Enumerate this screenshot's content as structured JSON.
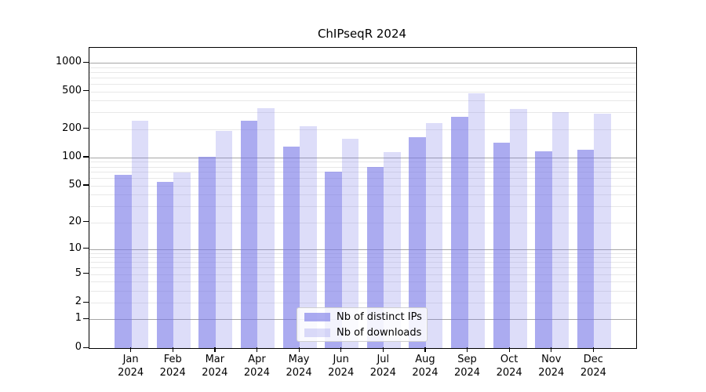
{
  "chart_data": {
    "type": "bar",
    "title": "ChIPseqR 2024",
    "year_label": "2024",
    "categories": [
      "Jan",
      "Feb",
      "Mar",
      "Apr",
      "May",
      "Jun",
      "Jul",
      "Aug",
      "Sep",
      "Oct",
      "Nov",
      "Dec"
    ],
    "series": [
      {
        "name": "Nb of distinct IPs",
        "key": "distinct-ips",
        "color_hex": "#a8a8f2",
        "fill_rgba": "rgba(120,120,230,0.62)",
        "values": [
          65,
          55,
          102,
          245,
          130,
          71,
          80,
          163,
          268,
          143,
          117,
          122
        ]
      },
      {
        "name": "Nb of downloads",
        "key": "downloads",
        "color_hex": "#dedef9",
        "fill_rgba": "rgba(120,120,230,0.25)",
        "values": [
          245,
          69,
          190,
          335,
          215,
          158,
          115,
          230,
          480,
          328,
          300,
          290
        ]
      }
    ],
    "yscale": "log10(1+v)",
    "y_ticks": [
      0,
      1,
      2,
      5,
      10,
      20,
      50,
      100,
      200,
      500,
      1000
    ],
    "ylim": [
      0,
      1400
    ],
    "grid": {
      "orientation": "horizontal",
      "major_values": [
        1,
        10,
        100,
        1000
      ],
      "major_color": "#a6a6a6",
      "minor_color": "#e8e8e8"
    },
    "legend_position": "lower center",
    "xlabel": "",
    "ylabel": ""
  },
  "colors": {
    "background": "#ffffff",
    "axis": "#000000",
    "text": "#000000"
  }
}
